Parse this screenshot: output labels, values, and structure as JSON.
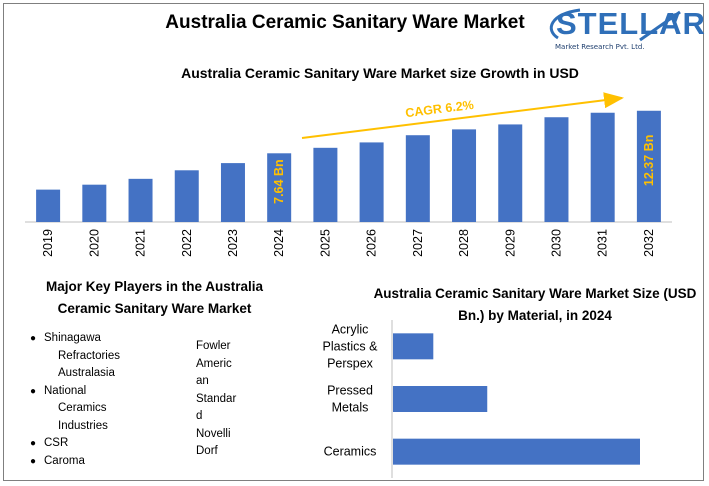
{
  "header": {
    "title": "Australia Ceramic Sanitary Ware Market",
    "logo": {
      "word": "STELLAR",
      "tagline": "Market Research Pvt. Ltd."
    }
  },
  "colors": {
    "bar": "#4472c4",
    "accent": "#ffc000",
    "logo": "#2f6fb8"
  },
  "chart_data": [
    {
      "type": "bar",
      "title": "Australia Ceramic Sanitary Ware Market size Growth in USD",
      "categories": [
        "2019",
        "2020",
        "2021",
        "2022",
        "2023",
        "2024",
        "2025",
        "2026",
        "2027",
        "2028",
        "2029",
        "2030",
        "2031",
        "2032"
      ],
      "values": [
        3.6,
        4.15,
        4.8,
        5.75,
        6.55,
        7.64,
        8.25,
        8.85,
        9.65,
        10.3,
        10.85,
        11.65,
        12.15,
        12.37
      ],
      "data_labels": {
        "2024": "7.64 Bn",
        "2032": "12.37 Bn"
      },
      "annotation": "CAGR 6.2%",
      "ylim": [
        0,
        13.9
      ],
      "grid": false
    },
    {
      "type": "bar",
      "orientation": "horizontal",
      "title": "Australia Ceramic Sanitary Ware Market Size (USD Bn.) by Material, in 2024",
      "categories": [
        [
          "Acrylic",
          "Plastics &",
          "Perspex"
        ],
        [
          "Pressed",
          "Metals"
        ],
        [
          "Ceramics"
        ]
      ],
      "values": [
        0.62,
        1.45,
        3.8
      ],
      "xlim": [
        0,
        4.0
      ],
      "grid": false
    }
  ],
  "key_players": {
    "title_lines": [
      "Major Key Players in the Australia",
      "Ceramic Sanitary Ware Market"
    ],
    "col1": [
      {
        "lines": [
          "Shinagawa",
          "Refractories",
          "Australasia"
        ]
      },
      {
        "lines": [
          "National",
          "Ceramics",
          "Industries"
        ]
      },
      {
        "lines": [
          "CSR"
        ]
      },
      {
        "lines": [
          "Caroma"
        ]
      }
    ],
    "col2": [
      "Fowler",
      "Americ",
      "an",
      "Standar",
      "d",
      "Novelli",
      "Dorf"
    ]
  }
}
